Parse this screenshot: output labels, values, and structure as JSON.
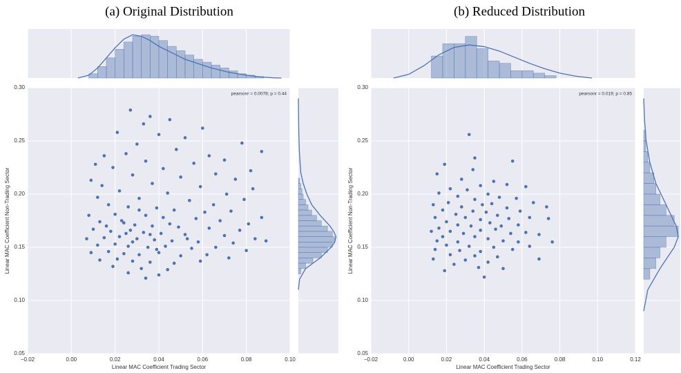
{
  "chart_data": [
    {
      "type": "scatter",
      "title": "(a) Original Distribution",
      "xlabel": "Linear MAC Coefficient Trading Sector",
      "ylabel": "Linear MAC Coefficient Non-Trading Sector",
      "annotation": "pearsonr = 0.0078; p = 0.44",
      "color": "#4c72b0",
      "grid": true,
      "xlim": [
        -0.02,
        0.1
      ],
      "ylim": [
        0.05,
        0.3
      ],
      "xticks": [
        {
          "value": -0.02,
          "label": "−0.02"
        },
        {
          "value": 0,
          "label": "0.00"
        },
        0.02,
        0.04,
        0.06,
        0.08,
        {
          "value": 0.1,
          "label": "0.10"
        }
      ],
      "yticks": [
        0.05,
        {
          "value": 0.1,
          "label": "0.10"
        },
        0.15,
        {
          "value": 0.2,
          "label": "0.20"
        },
        0.25,
        {
          "value": 0.3,
          "label": "0.30"
        }
      ],
      "x": [
        0.027,
        0.036,
        0.045,
        0.033,
        0.06,
        0.021,
        0.04,
        0.052,
        0.078,
        0.03,
        0.087,
        0.015,
        0.025,
        0.048,
        0.063,
        0.07,
        0.011,
        0.034,
        0.056,
        0.082,
        0.019,
        0.042,
        0.066,
        0.075,
        0.009,
        0.028,
        0.05,
        0.083,
        0.014,
        0.037,
        0.059,
        0.071,
        0.022,
        0.044,
        0.079,
        0.012,
        0.031,
        0.054,
        0.065,
        0.087,
        0.017,
        0.026,
        0.039,
        0.047,
        0.061,
        0.073,
        0.008,
        0.02,
        0.034,
        0.042,
        0.057,
        0.068,
        0.081,
        0.013,
        0.024,
        0.029,
        0.037,
        0.049,
        0.063,
        0.077,
        0.01,
        0.018,
        0.027,
        0.033,
        0.041,
        0.052,
        0.07,
        0.084,
        0.089,
        0.007,
        0.015,
        0.022,
        0.03,
        0.038,
        0.046,
        0.058,
        0.074,
        0.012,
        0.02,
        0.026,
        0.035,
        0.043,
        0.055,
        0.066,
        0.08,
        0.009,
        0.017,
        0.024,
        0.031,
        0.04,
        0.05,
        0.062,
        0.072,
        0.013,
        0.021,
        0.028,
        0.036,
        0.047,
        0.059,
        0.019,
        0.032,
        0.044,
        0.026,
        0.04,
        0.034,
        0.023,
        0.031,
        0.036,
        0.028,
        0.045,
        0.016,
        0.053,
        0.039,
        0.025
      ],
      "y": [
        0.279,
        0.273,
        0.27,
        0.266,
        0.262,
        0.258,
        0.256,
        0.253,
        0.248,
        0.247,
        0.24,
        0.236,
        0.238,
        0.242,
        0.236,
        0.232,
        0.228,
        0.231,
        0.229,
        0.222,
        0.225,
        0.224,
        0.219,
        0.214,
        0.213,
        0.218,
        0.216,
        0.205,
        0.208,
        0.21,
        0.207,
        0.2,
        0.203,
        0.201,
        0.195,
        0.197,
        0.196,
        0.194,
        0.19,
        0.178,
        0.19,
        0.188,
        0.187,
        0.185,
        0.183,
        0.184,
        0.18,
        0.181,
        0.18,
        0.178,
        0.177,
        0.175,
        0.172,
        0.174,
        0.173,
        0.171,
        0.17,
        0.169,
        0.168,
        0.166,
        0.167,
        0.165,
        0.166,
        0.164,
        0.163,
        0.162,
        0.161,
        0.158,
        0.156,
        0.158,
        0.159,
        0.16,
        0.158,
        0.157,
        0.156,
        0.155,
        0.154,
        0.152,
        0.153,
        0.151,
        0.15,
        0.151,
        0.149,
        0.15,
        0.147,
        0.145,
        0.146,
        0.144,
        0.143,
        0.145,
        0.142,
        0.143,
        0.14,
        0.138,
        0.139,
        0.137,
        0.136,
        0.135,
        0.137,
        0.132,
        0.13,
        0.129,
        0.126,
        0.124,
        0.121,
        0.175,
        0.185,
        0.162,
        0.155,
        0.172,
        0.17,
        0.158,
        0.148,
        0.163
      ],
      "marginal_x": {
        "lim": [
          0,
          34
        ],
        "bins": [
          0.008,
          0.012,
          0.016,
          0.02,
          0.024,
          0.028,
          0.032,
          0.036,
          0.04,
          0.044,
          0.048,
          0.052,
          0.056,
          0.06,
          0.064,
          0.068,
          0.072,
          0.076,
          0.08,
          0.084,
          0.088
        ],
        "counts": [
          3,
          8,
          14,
          20,
          25,
          29,
          30,
          29,
          26,
          22,
          19,
          16,
          13,
          11,
          9,
          7,
          5,
          3,
          2,
          1
        ],
        "kde_x": [
          0.003,
          0.008,
          0.012,
          0.016,
          0.02,
          0.024,
          0.028,
          0.032,
          0.036,
          0.04,
          0.044,
          0.048,
          0.052,
          0.056,
          0.06,
          0.064,
          0.068,
          0.072,
          0.076,
          0.08,
          0.084,
          0.088,
          0.092,
          0.096
        ],
        "kde_density": [
          0,
          2,
          7,
          14,
          21,
          27,
          30,
          29,
          26,
          22,
          19,
          16,
          13,
          11,
          9,
          7,
          5.5,
          4,
          3,
          2,
          1.2,
          0.6,
          0.2,
          0
        ]
      },
      "marginal_y": {
        "lim": [
          0,
          33
        ],
        "bins": [
          0.125,
          0.13,
          0.135,
          0.14,
          0.145,
          0.15,
          0.155,
          0.16,
          0.165,
          0.17,
          0.175,
          0.18,
          0.185,
          0.19,
          0.195,
          0.2,
          0.205,
          0.21,
          0.215
        ],
        "counts": [
          2,
          6,
          12,
          19,
          24,
          28,
          30,
          28,
          24,
          19,
          15,
          11,
          8,
          6,
          4,
          3,
          2,
          1
        ],
        "kde_y": [
          0.11,
          0.12,
          0.13,
          0.14,
          0.15,
          0.155,
          0.16,
          0.165,
          0.17,
          0.18,
          0.19,
          0.2,
          0.21,
          0.22,
          0.24,
          0.26,
          0.28,
          0.29
        ],
        "kde_density": [
          0,
          1,
          6,
          18,
          27,
          30,
          31,
          29,
          26,
          18,
          11,
          7,
          4,
          2,
          0.8,
          0.3,
          0.1,
          0
        ]
      }
    },
    {
      "type": "scatter",
      "title": "(b) Reduced Distribution",
      "xlabel": "Linear MAC Coefficient Trading Sector",
      "ylabel": "Linear MAC Coefficient Non-Trading Sector",
      "annotation": "pearsonr = 0.019; p = 0.85",
      "color": "#4c72b0",
      "grid": true,
      "xlim": [
        -0.02,
        0.12
      ],
      "ylim": [
        0.05,
        0.3
      ],
      "xticks": [
        {
          "value": -0.02,
          "label": "−0.02"
        },
        {
          "value": 0,
          "label": "0.00"
        },
        0.02,
        0.04,
        0.06,
        0.08,
        {
          "value": 0.1,
          "label": "0.10"
        },
        0.12
      ],
      "yticks": [
        0.05,
        {
          "value": 0.1,
          "label": "0.10"
        },
        0.15,
        {
          "value": 0.2,
          "label": "0.20"
        },
        0.25,
        {
          "value": 0.3,
          "label": "0.30"
        }
      ],
      "x": [
        0.032,
        0.035,
        0.055,
        0.019,
        0.034,
        0.015,
        0.028,
        0.045,
        0.038,
        0.052,
        0.062,
        0.022,
        0.031,
        0.016,
        0.042,
        0.026,
        0.048,
        0.035,
        0.057,
        0.013,
        0.021,
        0.039,
        0.044,
        0.066,
        0.028,
        0.052,
        0.073,
        0.018,
        0.034,
        0.041,
        0.059,
        0.025,
        0.047,
        0.014,
        0.03,
        0.038,
        0.053,
        0.064,
        0.074,
        0.02,
        0.043,
        0.026,
        0.033,
        0.049,
        0.058,
        0.016,
        0.038,
        0.046,
        0.012,
        0.022,
        0.029,
        0.054,
        0.062,
        0.069,
        0.018,
        0.035,
        0.042,
        0.015,
        0.026,
        0.05,
        0.058,
        0.076,
        0.02,
        0.032,
        0.045,
        0.064,
        0.014,
        0.027,
        0.038,
        0.055,
        0.022,
        0.035,
        0.047,
        0.013,
        0.03,
        0.042,
        0.069,
        0.024,
        0.019,
        0.037,
        0.04,
        0.05
      ],
      "y": [
        0.256,
        0.234,
        0.231,
        0.228,
        0.223,
        0.219,
        0.214,
        0.212,
        0.208,
        0.209,
        0.207,
        0.205,
        0.204,
        0.201,
        0.2,
        0.198,
        0.197,
        0.195,
        0.196,
        0.19,
        0.192,
        0.19,
        0.191,
        0.192,
        0.188,
        0.187,
        0.188,
        0.185,
        0.184,
        0.183,
        0.184,
        0.181,
        0.18,
        0.178,
        0.178,
        0.176,
        0.177,
        0.178,
        0.177,
        0.174,
        0.173,
        0.171,
        0.17,
        0.17,
        0.171,
        0.168,
        0.166,
        0.167,
        0.165,
        0.165,
        0.163,
        0.163,
        0.164,
        0.162,
        0.16,
        0.16,
        0.158,
        0.156,
        0.155,
        0.156,
        0.155,
        0.155,
        0.152,
        0.151,
        0.15,
        0.151,
        0.148,
        0.147,
        0.146,
        0.148,
        0.143,
        0.142,
        0.141,
        0.139,
        0.138,
        0.136,
        0.139,
        0.134,
        0.128,
        0.131,
        0.122,
        0.13
      ],
      "marginal_x": {
        "lim": [
          0,
          20
        ],
        "bins": [
          0.012,
          0.018,
          0.024,
          0.03,
          0.036,
          0.042,
          0.048,
          0.054,
          0.06,
          0.066,
          0.072,
          0.078
        ],
        "counts": [
          9,
          14,
          14,
          17,
          12,
          7,
          6,
          3,
          3,
          2,
          1
        ],
        "kde_x": [
          -0.008,
          0.0,
          0.008,
          0.016,
          0.024,
          0.032,
          0.04,
          0.048,
          0.056,
          0.064,
          0.072,
          0.08,
          0.088,
          0.097
        ],
        "kde_density": [
          0,
          1.5,
          5,
          9.5,
          12.5,
          13.5,
          12.8,
          11,
          8.5,
          6,
          3.8,
          2,
          0.8,
          0
        ]
      },
      "marginal_y": {
        "lim": [
          0,
          18
        ],
        "bins": [
          0.12,
          0.13,
          0.14,
          0.15,
          0.16,
          0.17,
          0.18,
          0.19,
          0.2,
          0.21,
          0.22,
          0.23,
          0.24,
          0.25,
          0.26
        ],
        "counts": [
          3,
          6,
          8,
          11,
          17,
          15,
          11,
          8,
          6,
          5,
          3,
          2,
          1,
          1
        ],
        "kde_y": [
          0.09,
          0.11,
          0.13,
          0.15,
          0.16,
          0.17,
          0.19,
          0.21,
          0.23,
          0.25,
          0.27,
          0.29
        ],
        "kde_density": [
          0,
          2,
          8,
          15,
          17,
          16,
          11,
          6,
          3,
          1.2,
          0.4,
          0
        ]
      }
    }
  ]
}
